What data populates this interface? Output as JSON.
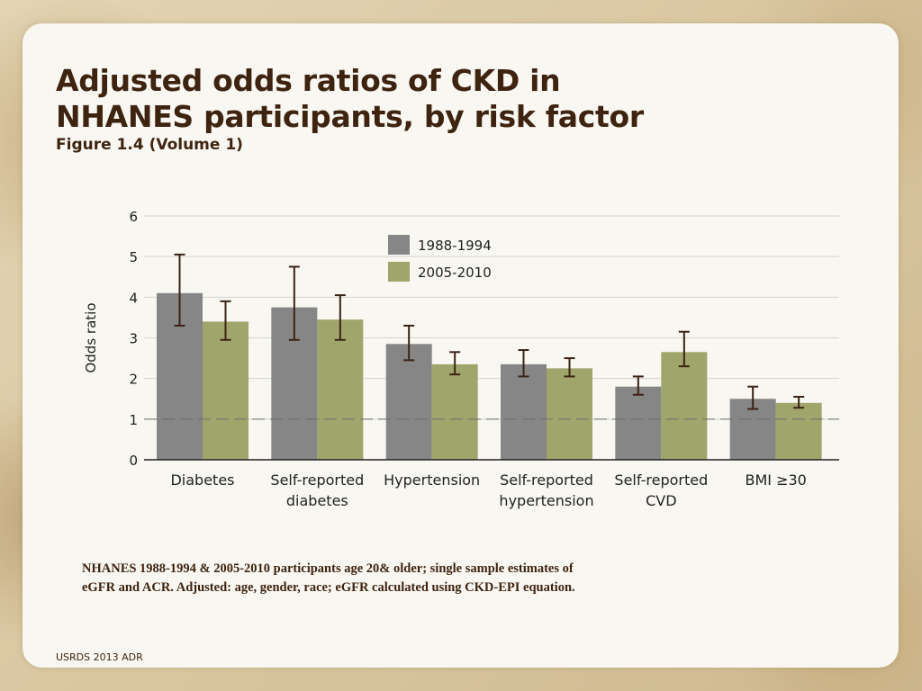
{
  "slide": {
    "title_line1": "Adjusted odds ratios of CKD in",
    "title_line2": "NHANES participants, by risk factor",
    "subtitle": "Figure 1.4 (Volume 1)",
    "note_line1": "NHANES 1988-1994 & 2005-2010 participants age 20& older; single sample estimates of",
    "note_line2": "eGFR and ACR. Adjusted: age, gender, race; eGFR calculated using CKD-EPI equation.",
    "footer": "USRDS 2013 ADR"
  },
  "chart_data": {
    "type": "bar",
    "title": "",
    "xlabel": "",
    "ylabel": "Odds ratio",
    "ylim": [
      0,
      6
    ],
    "yticks": [
      "0",
      "1",
      "2",
      "3",
      "4",
      "5",
      "6"
    ],
    "grid": true,
    "reference_line": 1,
    "legend_position": "top-center",
    "categories": [
      [
        "Diabetes"
      ],
      [
        "Self-reported",
        "diabetes"
      ],
      [
        "Hypertension"
      ],
      [
        "Self-reported",
        "hypertension"
      ],
      [
        "Self-reported",
        "CVD"
      ],
      [
        "BMI ≥30"
      ]
    ],
    "series": [
      {
        "name": "1988-1994",
        "color": "#868686",
        "values": [
          4.1,
          3.75,
          2.85,
          2.35,
          1.8,
          1.5
        ],
        "ci_low": [
          3.3,
          2.95,
          2.45,
          2.05,
          1.6,
          1.25
        ],
        "ci_high": [
          5.05,
          4.75,
          3.3,
          2.7,
          2.05,
          1.8
        ]
      },
      {
        "name": "2005-2010",
        "color": "#a0a56b",
        "values": [
          3.4,
          3.45,
          2.35,
          2.25,
          2.65,
          1.4
        ],
        "ci_low": [
          2.95,
          2.95,
          2.1,
          2.05,
          2.3,
          1.28
        ],
        "ci_high": [
          3.9,
          4.05,
          2.65,
          2.5,
          3.15,
          1.55
        ]
      }
    ],
    "errorbar_color": "#3b2314"
  }
}
